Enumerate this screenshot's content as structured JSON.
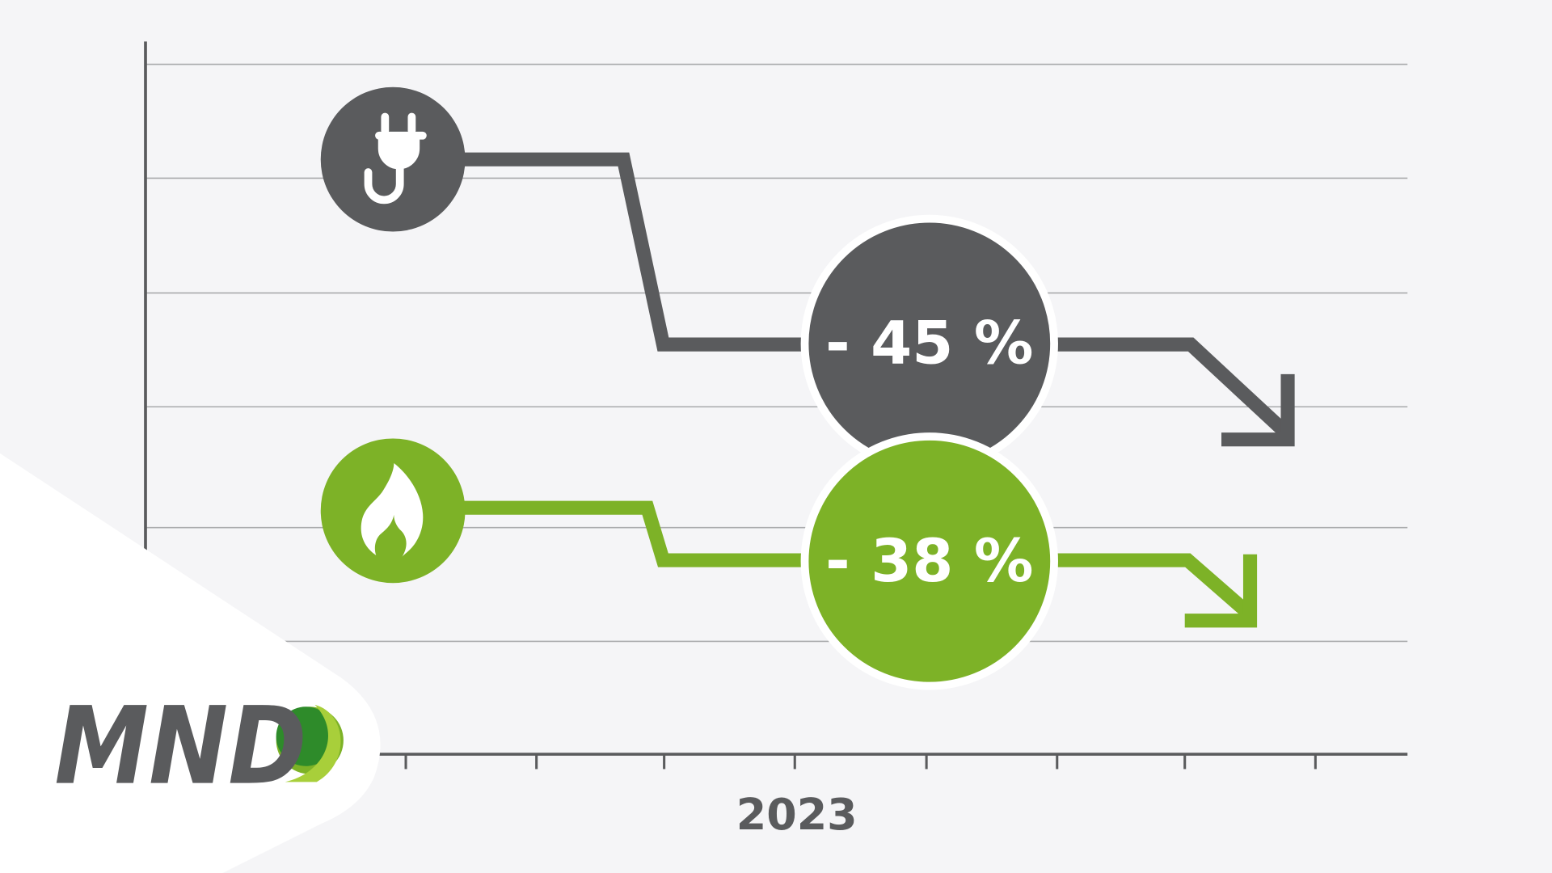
{
  "labels": {
    "electricity_change": "- 45 %",
    "gas_change": "- 38 %",
    "year": "2023"
  },
  "logo": "MND"
}
